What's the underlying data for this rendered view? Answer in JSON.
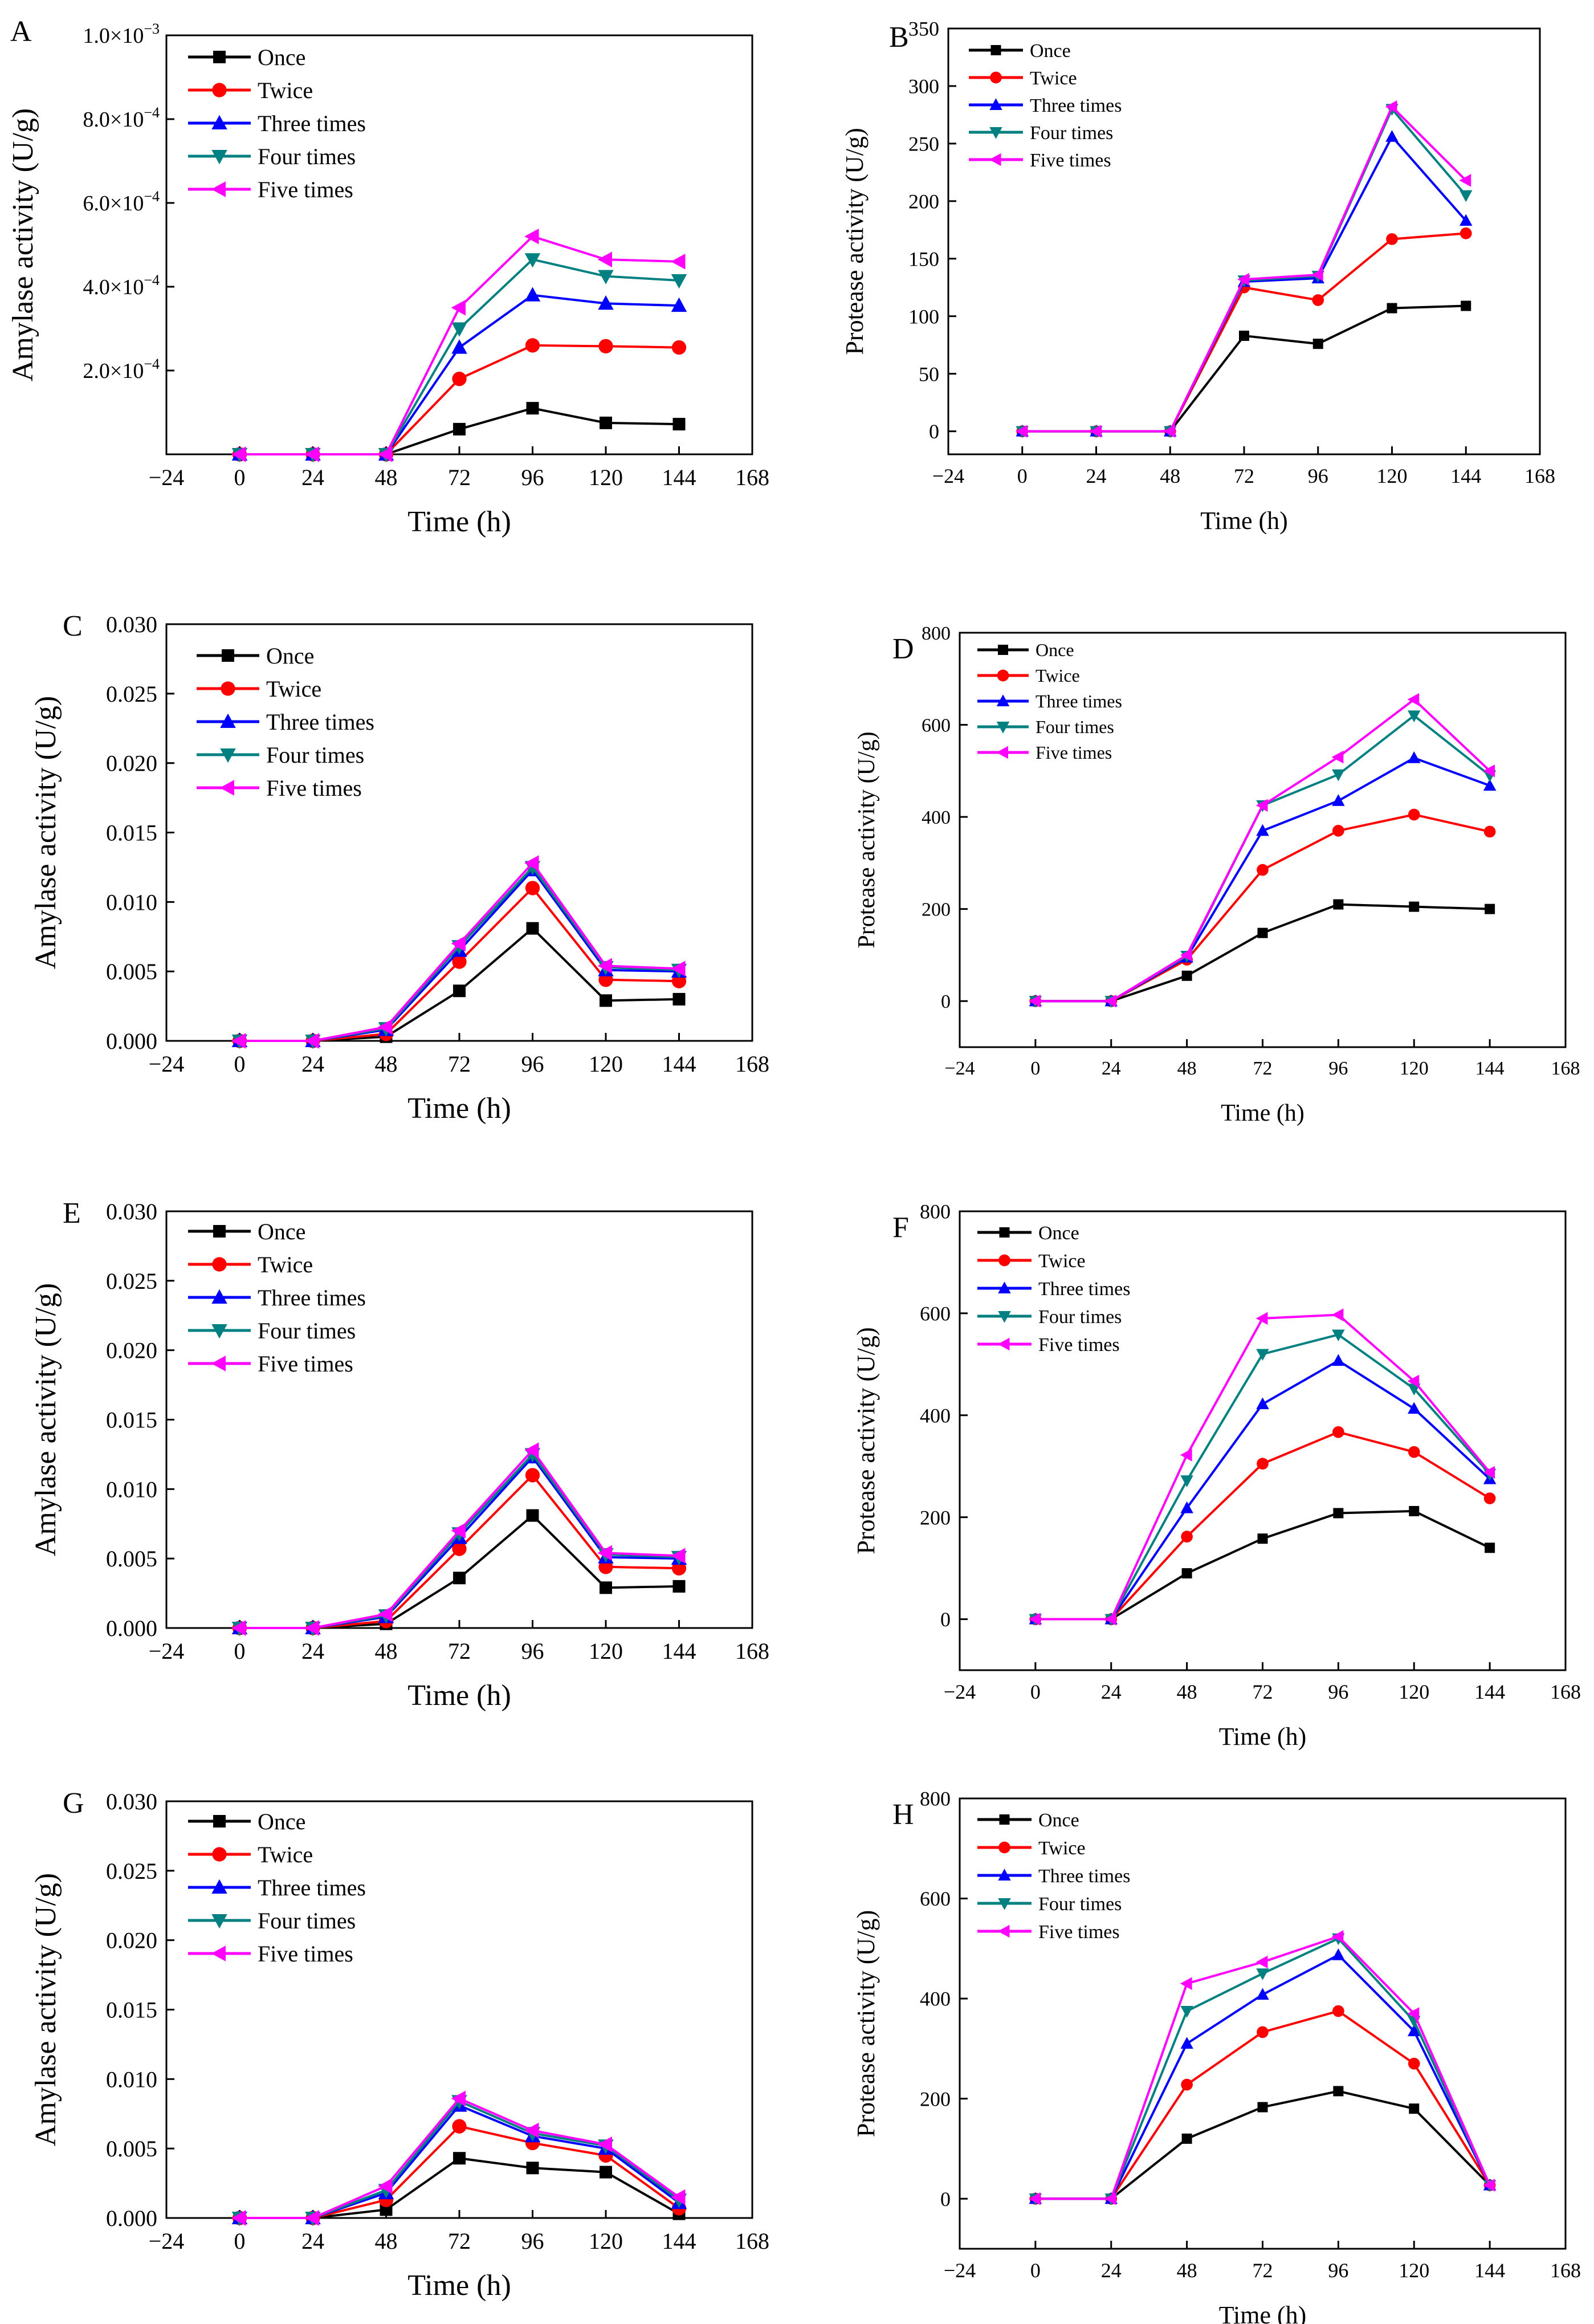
{
  "figure": {
    "x_ticks": [
      "−24",
      "0",
      "24",
      "48",
      "72",
      "96",
      "120",
      "144",
      "168"
    ],
    "series_names": [
      "Once",
      "Twice",
      "Three times",
      "Four times",
      "Five times"
    ],
    "series_colors": [
      "#000000",
      "#ff0000",
      "#0000ff",
      "#008080",
      "#ff00ff"
    ]
  },
  "chart_data": [
    {
      "panel": "A",
      "type": "line",
      "xlabel": "Time (h)",
      "ylabel": "Amylase activity (U/g)",
      "xlim": [
        -24,
        168
      ],
      "ylim": [
        0,
        0.001
      ],
      "x": [
        0,
        24,
        48,
        72,
        96,
        120,
        144
      ],
      "ytick_values": [
        0.0002,
        0.0004,
        0.0006,
        0.0008,
        0.001
      ],
      "ytick_labels": [
        [
          "2.0×10",
          "−4"
        ],
        [
          "4.0×10",
          "−4"
        ],
        [
          "6.0×10",
          "−4"
        ],
        [
          "8.0×10",
          "−4"
        ],
        [
          "1.0×10",
          "−3"
        ]
      ],
      "legend": [
        "Once",
        "Twice",
        "Three times",
        "Four times",
        "Five times"
      ],
      "series": [
        {
          "name": "Once",
          "values": [
            0,
            0,
            0,
            6e-05,
            0.00011,
            7.5e-05,
            7.2e-05
          ]
        },
        {
          "name": "Twice",
          "values": [
            0,
            0,
            0,
            0.00018,
            0.00026,
            0.000258,
            0.000255
          ]
        },
        {
          "name": "Three times",
          "values": [
            0,
            0,
            0,
            0.000255,
            0.00038,
            0.00036,
            0.000355
          ]
        },
        {
          "name": "Four times",
          "values": [
            0,
            0,
            0,
            0.0003,
            0.000465,
            0.000425,
            0.000415
          ]
        },
        {
          "name": "Five times",
          "values": [
            0,
            0,
            0,
            0.00035,
            0.00052,
            0.000465,
            0.00046
          ]
        }
      ]
    },
    {
      "panel": "B",
      "type": "line",
      "xlabel": "Time (h)",
      "ylabel": "Protease activity (U/g)",
      "xlim": [
        -24,
        168
      ],
      "ylim": [
        -20,
        350
      ],
      "x": [
        0,
        24,
        48,
        72,
        96,
        120,
        144
      ],
      "ytick_values": [
        0,
        50,
        100,
        150,
        200,
        250,
        300,
        350
      ],
      "ytick_labels": [
        "0",
        "50",
        "100",
        "150",
        "200",
        "250",
        "300",
        "350"
      ],
      "legend": [
        "Once",
        "Twice",
        "Three times",
        "Four times",
        "Five times"
      ],
      "series": [
        {
          "name": "Once",
          "values": [
            0,
            0,
            0,
            83,
            76,
            107,
            109
          ]
        },
        {
          "name": "Twice",
          "values": [
            0,
            0,
            0,
            125,
            114,
            167,
            172
          ]
        },
        {
          "name": "Three times",
          "values": [
            0,
            0,
            0,
            130,
            133,
            256,
            183
          ]
        },
        {
          "name": "Four times",
          "values": [
            0,
            0,
            0,
            131,
            135,
            280,
            205
          ]
        },
        {
          "name": "Five times",
          "values": [
            0,
            0,
            0,
            132,
            136,
            282,
            218
          ]
        }
      ]
    },
    {
      "panel": "C",
      "type": "line",
      "xlabel": "Time (h)",
      "ylabel": "Amylase activity (U/g)",
      "xlim": [
        -24,
        168
      ],
      "ylim": [
        0,
        0.03
      ],
      "x": [
        0,
        24,
        48,
        72,
        96,
        120,
        144
      ],
      "ytick_values": [
        0,
        0.005,
        0.01,
        0.015,
        0.02,
        0.025,
        0.03
      ],
      "ytick_labels": [
        "0.000",
        "0.005",
        "0.010",
        "0.015",
        "0.020",
        "0.025",
        "0.030"
      ],
      "legend": [
        "Once",
        "Twice",
        " Three times",
        "Four times",
        "Five times"
      ],
      "series": [
        {
          "name": "Once",
          "values": [
            0,
            0,
            0.0003,
            0.0036,
            0.0081,
            0.0029,
            0.003
          ]
        },
        {
          "name": "Twice",
          "values": [
            0,
            0,
            0.0005,
            0.0057,
            0.011,
            0.0044,
            0.0043
          ]
        },
        {
          "name": "Three times",
          "values": [
            0,
            0,
            0.0008,
            0.0065,
            0.0123,
            0.0051,
            0.005
          ]
        },
        {
          "name": "Four times",
          "values": [
            0,
            0,
            0.0009,
            0.0068,
            0.0125,
            0.0053,
            0.0051
          ]
        },
        {
          "name": "Five times",
          "values": [
            0,
            0,
            0.001,
            0.007,
            0.0128,
            0.0054,
            0.0052
          ]
        }
      ]
    },
    {
      "panel": "D",
      "type": "line",
      "xlabel": "Time (h)",
      "ylabel": "Protease activity (U/g)",
      "xlim": [
        -24,
        168
      ],
      "ylim": [
        -100,
        800
      ],
      "x": [
        0,
        24,
        48,
        72,
        96,
        120,
        144
      ],
      "ytick_values": [
        0,
        200,
        400,
        600,
        800
      ],
      "ytick_labels": [
        "0",
        "200",
        "400",
        "600",
        "800"
      ],
      "legend": [
        "Once",
        "Twice",
        "Three times",
        "Four times",
        "Five times"
      ],
      "series": [
        {
          "name": "Once",
          "values": [
            0,
            0,
            55,
            148,
            210,
            205,
            200
          ]
        },
        {
          "name": "Twice",
          "values": [
            0,
            0,
            90,
            285,
            370,
            405,
            368
          ]
        },
        {
          "name": "Three times",
          "values": [
            0,
            0,
            95,
            370,
            435,
            528,
            468
          ]
        },
        {
          "name": "Four times",
          "values": [
            0,
            0,
            98,
            425,
            492,
            620,
            490
          ]
        },
        {
          "name": "Five times",
          "values": [
            0,
            0,
            100,
            425,
            530,
            655,
            500
          ]
        }
      ]
    },
    {
      "panel": "E",
      "type": "line",
      "xlabel": "Time (h)",
      "ylabel": "Amylase activity (U/g)",
      "xlim": [
        -24,
        168
      ],
      "ylim": [
        0,
        0.03
      ],
      "x": [
        0,
        24,
        48,
        72,
        96,
        120,
        144
      ],
      "ytick_values": [
        0,
        0.005,
        0.01,
        0.015,
        0.02,
        0.025,
        0.03
      ],
      "ytick_labels": [
        "0.000",
        "0.005",
        "0.010",
        "0.015",
        "0.020",
        "0.025",
        "0.030"
      ],
      "legend": [
        "Once",
        "Twice",
        "Three times",
        "Four times",
        "Five times"
      ],
      "series": [
        {
          "name": "Once",
          "values": [
            0,
            0,
            0.0003,
            0.0036,
            0.0081,
            0.0029,
            0.003
          ]
        },
        {
          "name": "Twice",
          "values": [
            0,
            0,
            0.0005,
            0.0057,
            0.011,
            0.0044,
            0.0043
          ]
        },
        {
          "name": "Three times",
          "values": [
            0,
            0,
            0.0008,
            0.0065,
            0.0123,
            0.0051,
            0.005
          ]
        },
        {
          "name": "Four times",
          "values": [
            0,
            0,
            0.0009,
            0.0068,
            0.0125,
            0.0053,
            0.0051
          ]
        },
        {
          "name": "Five times",
          "values": [
            0,
            0,
            0.001,
            0.007,
            0.0128,
            0.0054,
            0.0052
          ]
        }
      ]
    },
    {
      "panel": "F",
      "type": "line",
      "xlabel": "Time (h)",
      "ylabel": "Protease activity (U/g)",
      "xlim": [
        -24,
        168
      ],
      "ylim": [
        -100,
        800
      ],
      "x": [
        0,
        24,
        48,
        72,
        96,
        120,
        144
      ],
      "ytick_values": [
        0,
        200,
        400,
        600,
        800
      ],
      "ytick_labels": [
        "0",
        "200",
        "400",
        "600",
        "800"
      ],
      "legend": [
        "Once",
        "Twice",
        "Three times",
        "Four times",
        "Five times"
      ],
      "series": [
        {
          "name": "Once",
          "values": [
            0,
            0,
            90,
            158,
            208,
            212,
            140
          ]
        },
        {
          "name": "Twice",
          "values": [
            0,
            0,
            162,
            305,
            367,
            328,
            237
          ]
        },
        {
          "name": "Three times",
          "values": [
            0,
            0,
            218,
            422,
            507,
            413,
            275
          ]
        },
        {
          "name": "Four times",
          "values": [
            0,
            0,
            272,
            520,
            558,
            452,
            285
          ]
        },
        {
          "name": "Five times",
          "values": [
            0,
            0,
            322,
            590,
            597,
            467,
            288
          ]
        }
      ]
    },
    {
      "panel": "G",
      "type": "line",
      "xlabel": "Time (h)",
      "ylabel": "Amylase activity (U/g)",
      "xlim": [
        -24,
        168
      ],
      "ylim": [
        0,
        0.03
      ],
      "x": [
        0,
        24,
        48,
        72,
        96,
        120,
        144
      ],
      "ytick_values": [
        0,
        0.005,
        0.01,
        0.015,
        0.02,
        0.025,
        0.03
      ],
      "ytick_labels": [
        "0.000",
        "0.005",
        "0.010",
        "0.015",
        "0.020",
        "0.025",
        "0.030"
      ],
      "legend": [
        "Once",
        "Twice",
        "Three times",
        "Four times",
        "Five times"
      ],
      "series": [
        {
          "name": "Once",
          "values": [
            0,
            0,
            0.0006,
            0.0043,
            0.0036,
            0.0033,
            0.0003
          ]
        },
        {
          "name": "Twice",
          "values": [
            0,
            0,
            0.0013,
            0.0066,
            0.0054,
            0.0045,
            0.0007
          ]
        },
        {
          "name": "Three times",
          "values": [
            0,
            0,
            0.0018,
            0.0081,
            0.0059,
            0.005,
            0.0011
          ]
        },
        {
          "name": "Four times",
          "values": [
            0,
            0,
            0.002,
            0.0084,
            0.0061,
            0.0052,
            0.0013
          ]
        },
        {
          "name": "Five times",
          "values": [
            0,
            0,
            0.0023,
            0.0086,
            0.0063,
            0.0053,
            0.0015
          ]
        }
      ]
    },
    {
      "panel": "H",
      "type": "line",
      "xlabel": "Time (h)",
      "ylabel": "Protease activity (U/g)",
      "xlim": [
        -24,
        168
      ],
      "ylim": [
        -100,
        800
      ],
      "x": [
        0,
        24,
        48,
        72,
        96,
        120,
        144
      ],
      "ytick_values": [
        0,
        200,
        400,
        600,
        800
      ],
      "ytick_labels": [
        "0",
        "200",
        "400",
        "600",
        "800"
      ],
      "legend": [
        "Once",
        "Twice",
        "Three times",
        "Four times",
        "Five times"
      ],
      "series": [
        {
          "name": "Once",
          "values": [
            0,
            0,
            120,
            183,
            215,
            180,
            27
          ]
        },
        {
          "name": "Twice",
          "values": [
            0,
            0,
            228,
            333,
            375,
            270,
            27
          ]
        },
        {
          "name": "Three times",
          "values": [
            0,
            0,
            310,
            408,
            487,
            335,
            27
          ]
        },
        {
          "name": "Four times",
          "values": [
            0,
            0,
            375,
            450,
            520,
            355,
            27
          ]
        },
        {
          "name": "Five times",
          "values": [
            0,
            0,
            430,
            473,
            524,
            370,
            27
          ]
        }
      ]
    }
  ]
}
